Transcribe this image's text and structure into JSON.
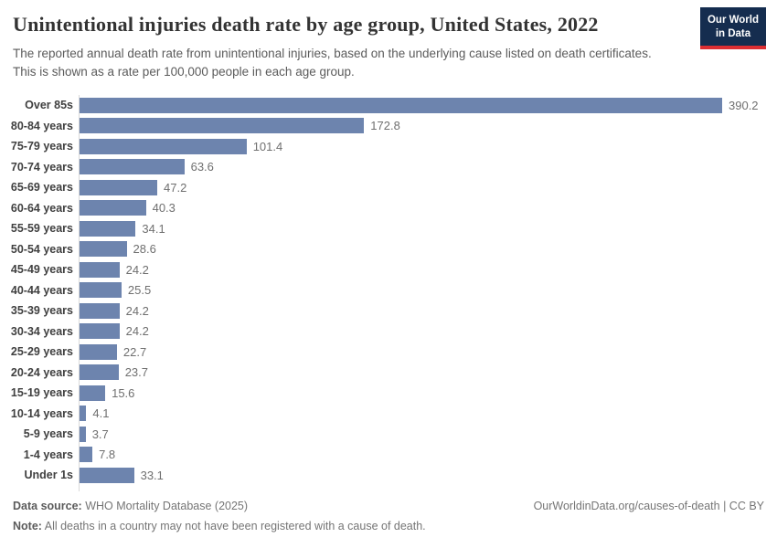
{
  "header": {
    "title": "Unintentional injuries death rate by age group, United States, 2022",
    "subtitle": "The reported annual death rate from unintentional injuries, based on the underlying cause listed on death certificates. This is shown as a rate per 100,000 people in each age group.",
    "logo": {
      "line1": "Our World",
      "line2": "in Data"
    }
  },
  "chart_data": {
    "type": "bar",
    "orientation": "horizontal",
    "title": "Unintentional injuries death rate by age group, United States, 2022",
    "categories": [
      "Over 85s",
      "80-84 years",
      "75-79 years",
      "70-74 years",
      "65-69 years",
      "60-64 years",
      "55-59 years",
      "50-54 years",
      "45-49 years",
      "40-44 years",
      "35-39 years",
      "30-34 years",
      "25-29 years",
      "20-24 years",
      "15-19 years",
      "10-14 years",
      "5-9 years",
      "1-4 years",
      "Under 1s"
    ],
    "values": [
      390.2,
      172.8,
      101.4,
      63.6,
      47.2,
      40.3,
      34.1,
      28.6,
      24.2,
      25.5,
      24.2,
      24.2,
      22.7,
      23.7,
      15.6,
      4.1,
      3.7,
      7.8,
      33.1
    ],
    "value_labels": [
      "390.2",
      "172.8",
      "101.4",
      "63.6",
      "47.2",
      "40.3",
      "34.1",
      "28.6",
      "24.2",
      "25.5",
      "24.2",
      "24.2",
      "22.7",
      "23.7",
      "15.6",
      "4.1",
      "3.7",
      "7.8",
      "33.1"
    ],
    "xlabel": "",
    "ylabel": "",
    "xlim": [
      0,
      390.2
    ],
    "grid": false,
    "legend": false,
    "bar_color": "#6d84ae",
    "unit": "deaths per 100,000 people"
  },
  "footer": {
    "data_source_label": "Data source:",
    "data_source": " WHO Mortality Database (2025)",
    "note_label": "Note:",
    "note": " All deaths in a country may not have been registered with a cause of death.",
    "attribution": "OurWorldinData.org/causes-of-death | CC BY"
  },
  "colors": {
    "bar": "#6d84ae",
    "logo_background": "#152d4f",
    "logo_stripe": "#dc2e32",
    "axis_line": "#d9d9d9"
  }
}
